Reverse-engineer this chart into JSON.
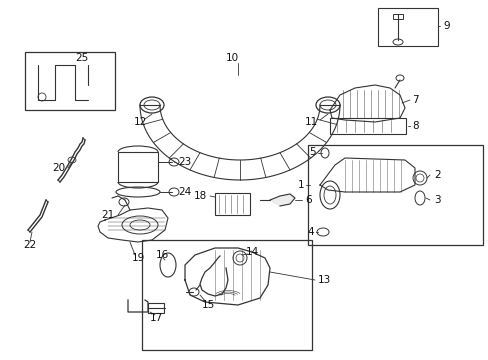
{
  "bg_color": "#ffffff",
  "line_color": "#333333",
  "label_color": "#111111",
  "fig_width": 4.89,
  "fig_height": 3.6,
  "dpi": 100,
  "font_size": 7.5
}
